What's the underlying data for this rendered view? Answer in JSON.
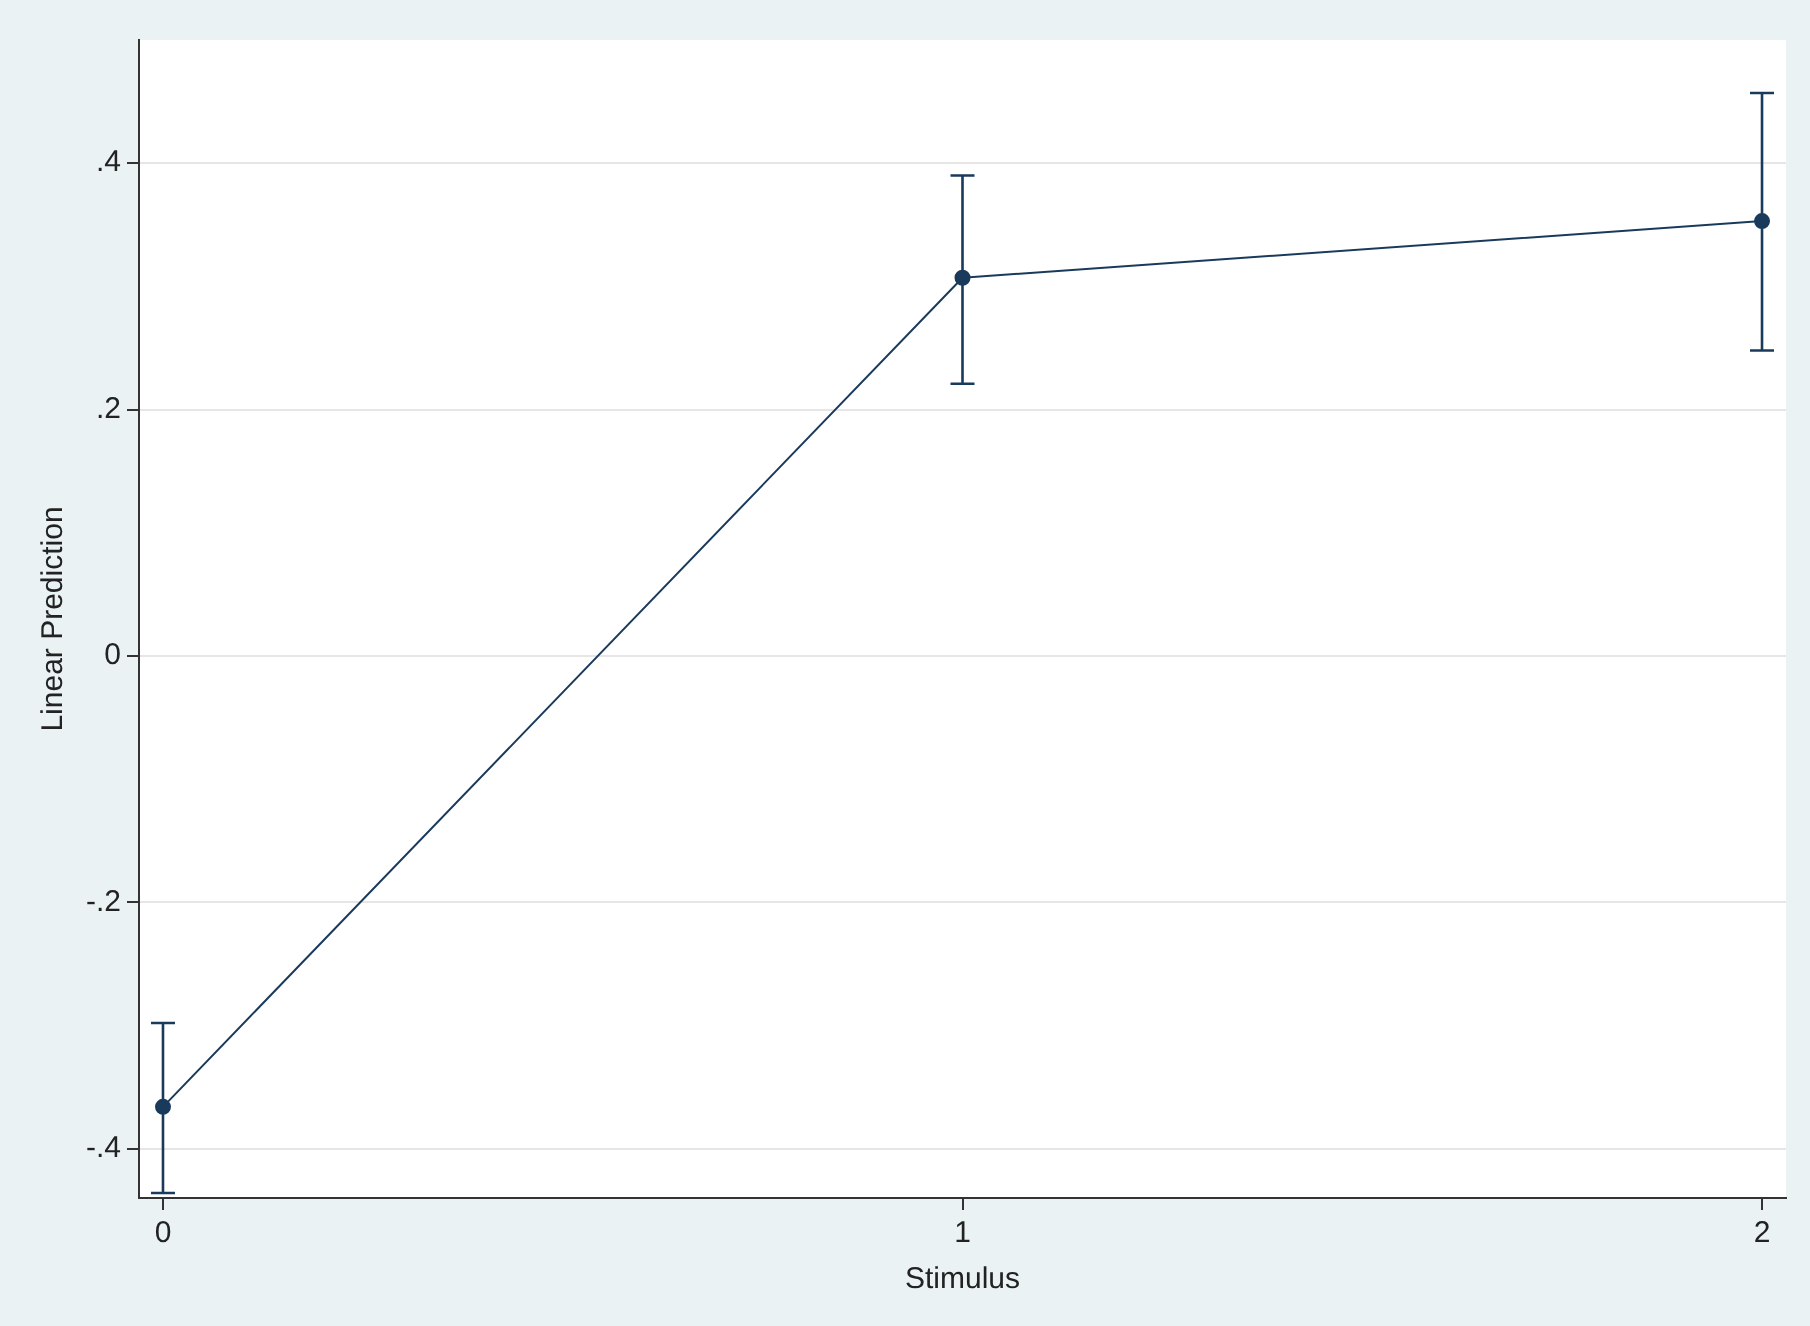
{
  "chart_data": {
    "type": "line",
    "xlabel": "Stimulus",
    "ylabel": "Linear Prediction",
    "x": [
      0,
      1,
      2
    ],
    "series": [
      {
        "color": "#1a3a5c",
        "values": [
          -0.366,
          0.307,
          0.353
        ],
        "errors": [
          [
            -0.436,
            -0.298
          ],
          [
            0.221,
            0.39
          ],
          [
            0.248,
            0.457
          ]
        ]
      }
    ],
    "xlim": [
      -0.03,
      2.03
    ],
    "xticks": [
      0,
      1,
      2
    ],
    "ylim": [
      -0.44,
      0.5
    ],
    "yticks": [
      {
        "value": -0.4,
        "label": "-.4"
      },
      {
        "value": -0.2,
        "label": "-.2"
      },
      0,
      {
        "value": 0.2,
        "label": ".2"
      },
      {
        "value": 0.4,
        "label": ".4"
      }
    ],
    "grid": "y",
    "marker": "circle",
    "line_style": "solid",
    "legend": false
  }
}
